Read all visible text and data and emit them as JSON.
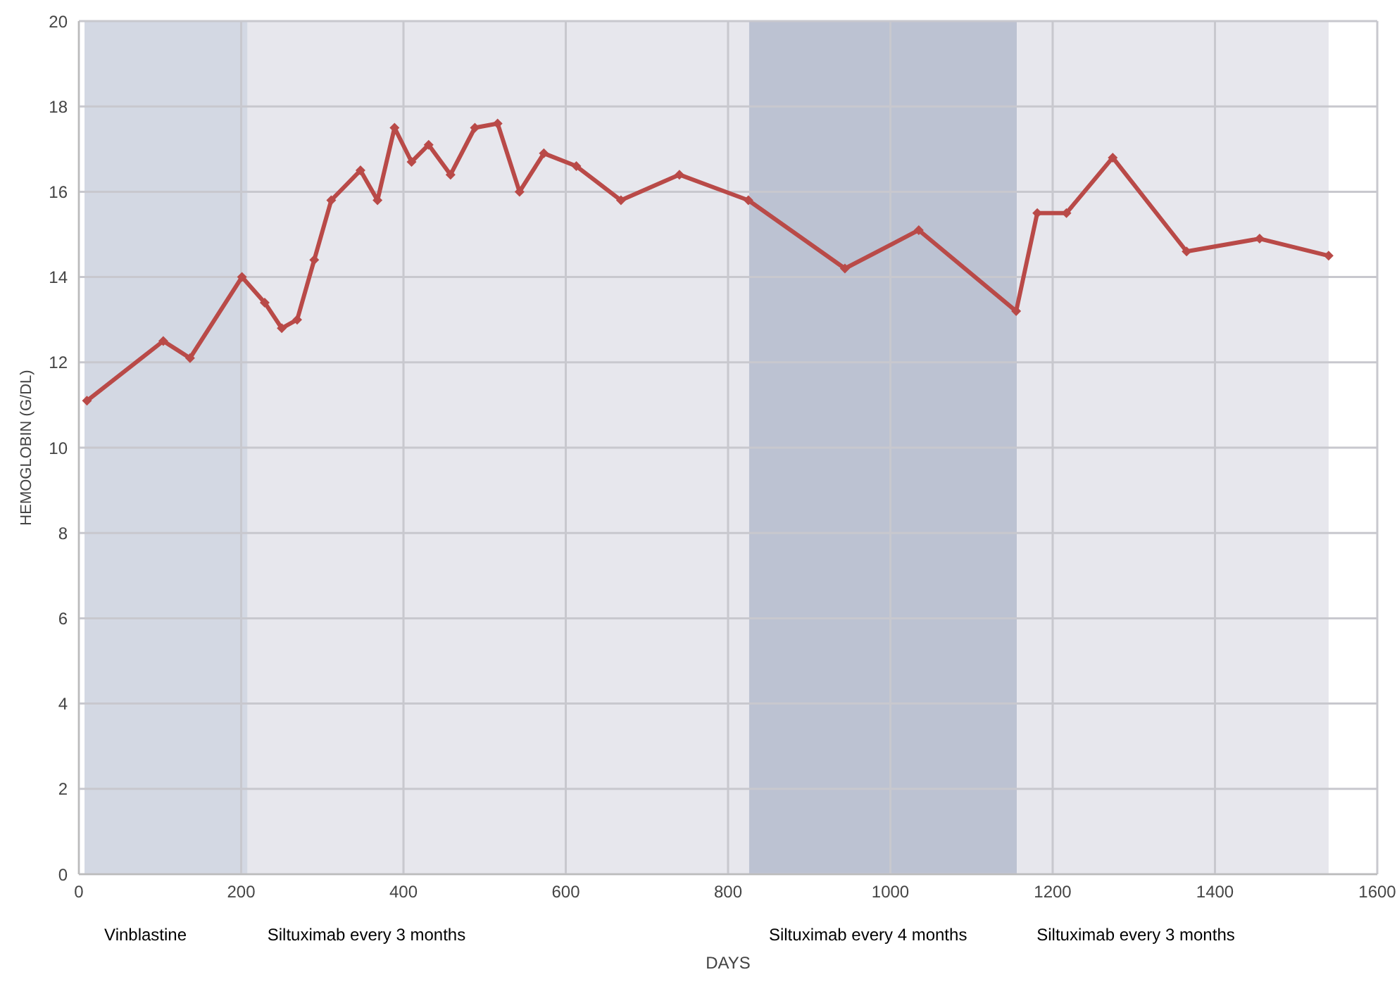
{
  "chart_data": {
    "type": "line",
    "xlabel": "DAYS",
    "ylabel": "HEMOGLOBIN (G/DL)",
    "x": [
      10,
      104,
      137,
      201,
      229,
      250,
      269,
      290,
      311,
      347,
      368,
      389,
      410,
      431,
      458,
      488,
      516,
      543,
      573,
      613,
      668,
      740,
      825,
      944,
      1035,
      1155,
      1181,
      1217,
      1274,
      1365,
      1455,
      1540
    ],
    "series": [
      {
        "color": "#b94a48",
        "values": [
          11.1,
          12.5,
          12.1,
          14.0,
          13.4,
          12.8,
          13.0,
          14.4,
          15.8,
          16.5,
          15.8,
          17.5,
          16.7,
          17.1,
          16.4,
          17.5,
          17.6,
          16.0,
          16.9,
          16.6,
          15.8,
          16.4,
          15.8,
          14.2,
          15.1,
          13.2,
          15.5,
          15.5,
          16.8,
          14.6,
          14.9,
          14.5
        ]
      }
    ],
    "xlim": [
      0,
      1600
    ],
    "xticks": [
      0,
      200,
      400,
      600,
      800,
      1000,
      1200,
      1400,
      1600
    ],
    "ylim": [
      0,
      20
    ],
    "yticks": [
      0,
      2,
      4,
      6,
      8,
      10,
      12,
      14,
      16,
      18,
      20
    ],
    "bands": [
      {
        "axis": "x",
        "from": 7,
        "to": 208,
        "label": "Vinblastine",
        "color": "#d3d8e3"
      },
      {
        "axis": "x",
        "from": 208,
        "to": 826,
        "label": "Siltuximab every 3 months",
        "color": "#e7e7ed"
      },
      {
        "axis": "x",
        "from": 826,
        "to": 1156,
        "label": "Siltuximab  every 4 months",
        "color": "#bcc2d2"
      },
      {
        "axis": "x",
        "from": 1156,
        "to": 1540,
        "label": "Siltuximab every 3 months",
        "color": "#e7e7ed"
      }
    ],
    "grid": true,
    "marker": "diamond",
    "line_style": "solid",
    "legend": false
  }
}
